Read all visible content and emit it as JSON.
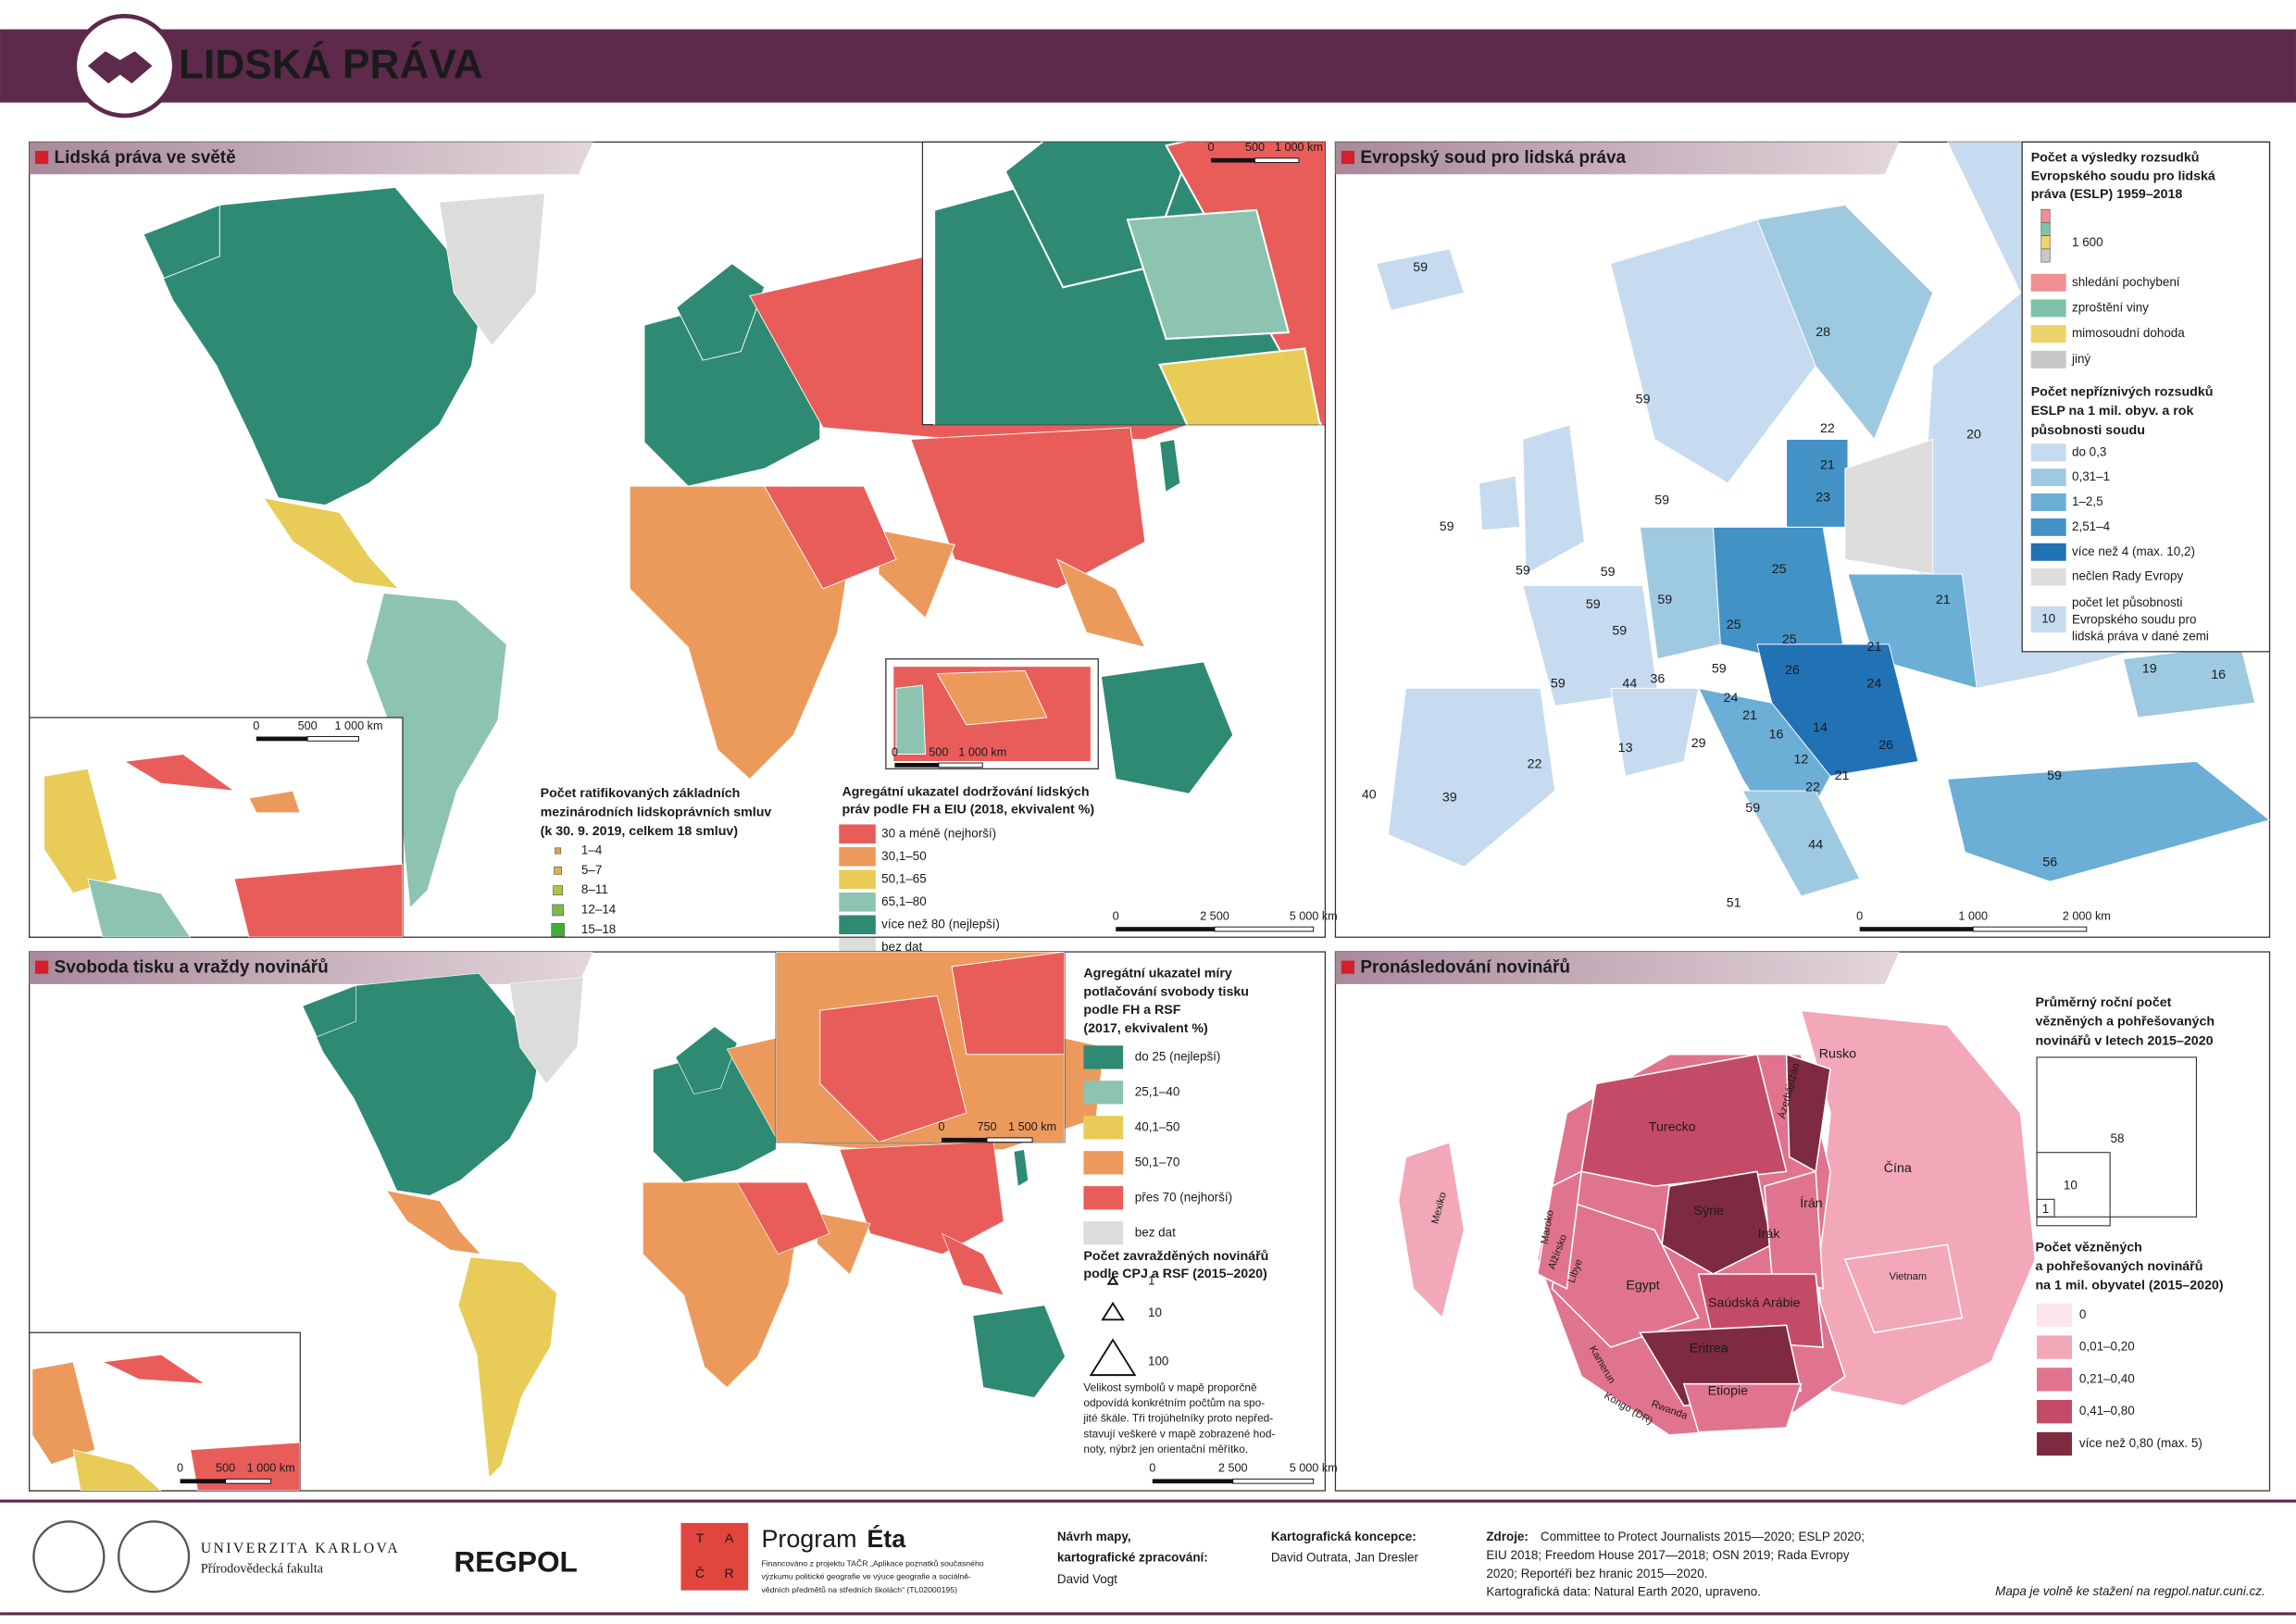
{
  "header": {
    "title": "LIDSKÁ PRÁVA"
  },
  "world": {
    "title": "Lidská práva ve světě",
    "treaties": {
      "title": [
        "Počet ratifikovaných základních",
        "mezinárodních lidskoprávních smluv",
        "(k 30. 9. 2019, celkem 18 smluv)"
      ],
      "items": [
        "1–4",
        "5–7",
        "8–11",
        "12–14",
        "15–18"
      ]
    },
    "index": {
      "title": [
        "Agregátní ukazatel dodržování lidských",
        "práv podle FH a EIU (2018, ekvivalent %)"
      ],
      "items": [
        {
          "label": "30 a méně (nejhorší)",
          "color": "#e85d5a"
        },
        {
          "label": "30,1–50",
          "color": "#ec9a5c"
        },
        {
          "label": "50,1–65",
          "color": "#e8cc57"
        },
        {
          "label": "65,1–80",
          "color": "#8dc3b1"
        },
        {
          "label": "více než 80 (nejlepší)",
          "color": "#2e8a73"
        },
        {
          "label": "bez dat",
          "color": "#dcdcdc"
        }
      ]
    },
    "scale": [
      "0",
      "2 500",
      "5 000 km"
    ],
    "europe_scale": [
      "0",
      "500",
      "1 000 km"
    ],
    "mideast_scale": [
      "0",
      "500",
      "1 000 km"
    ],
    "caribbean_scale": [
      "0",
      "500",
      "1 000 km"
    ]
  },
  "europe": {
    "title": "Evropský soud pro lidská práva",
    "cases": {
      "title": [
        "Počet a výsledky rozsudků",
        "Evropského soudu pro lidská",
        "práva (ESLP) 1959–2018"
      ],
      "sample": "1 600",
      "items": [
        {
          "label": "shledání pochybení",
          "color": "#f08e93"
        },
        {
          "label": "zproštění viny",
          "color": "#7fc1a9"
        },
        {
          "label": "mimosoudní dohoda",
          "color": "#ecd36a"
        },
        {
          "label": "jiný",
          "color": "#c8c8c8"
        }
      ]
    },
    "adverse": {
      "title": [
        "Počet nepříznivých rozsudků",
        "ESLP na 1 mil. obyv. a rok",
        "působnosti soudu"
      ],
      "items": [
        {
          "label": "do 0,3",
          "color": "#c6dbef"
        },
        {
          "label": "0,31–1",
          "color": "#9ecae1"
        },
        {
          "label": "1–2,5",
          "color": "#6baed6"
        },
        {
          "label": "2,51–4",
          "color": "#4292c6"
        },
        {
          "label": "více než 4 (max. 10,2)",
          "color": "#2171b5"
        },
        {
          "label": "nečlen Rady Evropy",
          "color": "#dddddd"
        }
      ]
    },
    "years_note": {
      "sample": "10",
      "text": [
        "počet let působnosti",
        "Evropského soudu pro",
        "lidská práva v dané zemi"
      ]
    },
    "country_years": [
      "59",
      "28",
      "20",
      "59",
      "22",
      "21",
      "23",
      "59",
      "59",
      "59",
      "59",
      "59",
      "59",
      "59",
      "25",
      "21",
      "25",
      "25",
      "21",
      "59",
      "44",
      "36",
      "59",
      "26",
      "24",
      "24",
      "21",
      "16",
      "14",
      "26",
      "29",
      "13",
      "12",
      "22",
      "21",
      "59",
      "59",
      "22",
      "40",
      "39",
      "44",
      "51",
      "56",
      "19",
      "16"
    ],
    "scale": [
      "0",
      "1 000",
      "2 000 km"
    ]
  },
  "press": {
    "title": "Svoboda tisku a vraždy novinářů",
    "index": {
      "title": [
        "Agregátní ukazatel míry",
        "potlačování svobody tisku",
        "podle FH a RSF",
        "(2017, ekvivalent %)"
      ],
      "items": [
        {
          "label": "do 25 (nejlepší)",
          "color": "#2e8a73"
        },
        {
          "label": "25,1–40",
          "color": "#8dc3b1"
        },
        {
          "label": "40,1–50",
          "color": "#e8cc57"
        },
        {
          "label": "50,1–70",
          "color": "#ec9a5c"
        },
        {
          "label": "přes 70 (nejhorší)",
          "color": "#e85d5a"
        },
        {
          "label": "bez dat",
          "color": "#dcdcdc"
        }
      ]
    },
    "murders": {
      "title": [
        "Počet zavražděných novinářů",
        "podle CPJ a RSF (2015–2020)"
      ],
      "items": [
        "1",
        "10",
        "100"
      ],
      "note": [
        "Velikost symbolů v mapě proporčně",
        "odpovídá konkrétním počtům na spo-",
        "jité škále. Tři trojúhelníky proto nepřed-",
        "stavují veškeré v mapě zobrazené hod-",
        "noty, nýbrž jen orientační měřítko."
      ]
    },
    "scale": [
      "0",
      "2 500",
      "5 000 km"
    ],
    "mideast_scale": [
      "0",
      "750",
      "1 500 km"
    ],
    "caribbean_scale": [
      "0",
      "500",
      "1 000 km"
    ]
  },
  "prison": {
    "title": "Pronásledování novinářů",
    "size": {
      "title": [
        "Průměrný roční počet",
        "vězněných a pohřešovaných",
        "novinářů v letech 2015–2020"
      ],
      "items": [
        "58",
        "10",
        "1"
      ]
    },
    "rate": {
      "title": [
        "Počet vězněných",
        "a pohřešovaných novinářů",
        "na 1 mil. obyvatel (2015–2020)"
      ],
      "items": [
        {
          "label": "0",
          "color": "#fbe4ea"
        },
        {
          "label": "0,01–0,20",
          "color": "#f2a8b8"
        },
        {
          "label": "0,21–0,40",
          "color": "#e0748e"
        },
        {
          "label": "0,41–0,80",
          "color": "#c44b68"
        },
        {
          "label": "více než 0,80 (max. 5)",
          "color": "#7e2a40"
        }
      ]
    },
    "countries": [
      "Rusko",
      "Turecko",
      "Sýrie",
      "Irák",
      "Írán",
      "Čína",
      "Egypt",
      "Saúdská Arábie",
      "Eritrea",
      "Etiopie",
      "Mexiko",
      "Alžírsko",
      "Libye",
      "Maroko",
      "Kamerun",
      "Kongo (DR)",
      "Rwanda",
      "Vietnam",
      "Ázerbájdžán"
    ]
  },
  "footer": {
    "university": "UNIVERZITA KARLOVA",
    "faculty": "Přírodovědecká fakulta",
    "regpol": "REGPOL",
    "tacr": [
      "T",
      "A",
      "Č",
      "R"
    ],
    "program": "Program",
    "program_name": "Éta",
    "funding": [
      "Financováno z projektu TAČR „Aplikace poznatků současného",
      "výzkumu politické geografie ve výuce geografie a sociálně-",
      "vědních předmětů na středních školách“ (TL02000195)"
    ],
    "design_label": [
      "Návrh mapy,",
      "kartografické zpracování:"
    ],
    "design_name": "David Vogt",
    "concept_label": "Kartografická koncepce:",
    "concept_name": "David Outrata, Jan Dresler",
    "sources_label": "Zdroje:",
    "sources": [
      "Committee to Protect Journalists 2015—2020; ESLP 2020;",
      "EIU 2018; Freedom House 2017—2018; OSN 2019; Rada Evropy",
      "2020; Reportéři bez hranic 2015—2020.",
      "Kartografická data: Natural Earth 2020, upraveno."
    ],
    "download": "Mapa je volně ke stažení na regpol.natur.cuni.cz."
  }
}
